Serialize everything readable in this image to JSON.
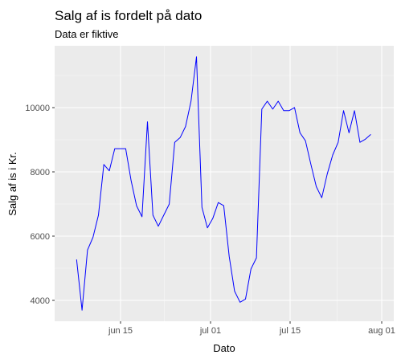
{
  "chart_data": {
    "type": "line",
    "title": "Salg af is fordelt på dato",
    "subtitle": "Data er fiktive",
    "xlabel": "Dato",
    "ylabel": "Salg af is i Kr.",
    "x_ticks": [
      "jun 15",
      "jul 01",
      "jul 15",
      "aug 01"
    ],
    "y_ticks": [
      "4000",
      "6000",
      "8000",
      "10000"
    ],
    "xlim": [
      "2023-06-03",
      "2023-08-01"
    ],
    "ylim": [
      3300,
      12000
    ],
    "grid": true,
    "line_color": "#0000ff",
    "panel_color": "#ebebeb",
    "series": [
      {
        "x": [
          "2023-06-06",
          "2023-06-07",
          "2023-06-08",
          "2023-06-09",
          "2023-06-10",
          "2023-06-11",
          "2023-06-12",
          "2023-06-13",
          "2023-06-14",
          "2023-06-15",
          "2023-06-16",
          "2023-06-17",
          "2023-06-18",
          "2023-06-19",
          "2023-06-20",
          "2023-06-21",
          "2023-06-22",
          "2023-06-23",
          "2023-06-24",
          "2023-06-25",
          "2023-06-26",
          "2023-06-27",
          "2023-06-28",
          "2023-06-29",
          "2023-06-30",
          "2023-07-01",
          "2023-07-02",
          "2023-07-03",
          "2023-07-04",
          "2023-07-05",
          "2023-07-06",
          "2023-07-07",
          "2023-07-08",
          "2023-07-09",
          "2023-07-10",
          "2023-07-11",
          "2023-07-12",
          "2023-07-13",
          "2023-07-14",
          "2023-07-15",
          "2023-07-16",
          "2023-07-17",
          "2023-07-18",
          "2023-07-19",
          "2023-07-20",
          "2023-07-21",
          "2023-07-22",
          "2023-07-23",
          "2023-07-24",
          "2023-07-25",
          "2023-07-26",
          "2023-07-27",
          "2023-07-28",
          "2023-07-29",
          "2023-07-30"
        ],
        "values": [
          5250,
          3650,
          5550,
          5950,
          6650,
          8250,
          8050,
          8750,
          8750,
          8750,
          7750,
          6950,
          6600,
          9600,
          6650,
          6300,
          6650,
          7000,
          8950,
          9100,
          9450,
          10250,
          11650,
          6900,
          6250,
          6550,
          7050,
          6950,
          5350,
          4250,
          3900,
          4000,
          4950,
          5300,
          10000,
          10250,
          10000,
          10250,
          9950,
          9950,
          10050,
          9250,
          9000,
          8250,
          7550,
          7200,
          7950,
          8550,
          8950,
          9950,
          9250,
          9950,
          8950,
          9050,
          9200
        ]
      }
    ]
  }
}
